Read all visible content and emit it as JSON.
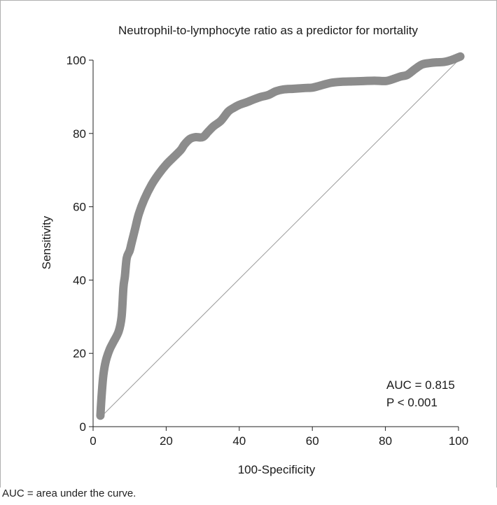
{
  "chart_data": {
    "type": "line",
    "title": "Neutrophil-to-lymphocyte ratio as a predictor for mortality",
    "xlabel": "100-Specificity",
    "ylabel": "Sensitivity",
    "xlim": [
      0,
      100
    ],
    "ylim": [
      0,
      100
    ],
    "xticks": [
      "0",
      "20",
      "40",
      "60",
      "80",
      "100"
    ],
    "yticks": [
      "0",
      "20",
      "40",
      "60",
      "80",
      "100"
    ],
    "grid": false,
    "series": [
      {
        "x": [
          2,
          2.3,
          2.8,
          3.5,
          4.5,
          5.5,
          7,
          7.8,
          8.3,
          8.7,
          9.2,
          10,
          10.5,
          11.5,
          12.5,
          14,
          16,
          18,
          20,
          22,
          24,
          25,
          26.5,
          28,
          30,
          31.5,
          33,
          35,
          37,
          38.5,
          40,
          42,
          44,
          46,
          48,
          50,
          52,
          55,
          58,
          60,
          62,
          65,
          68,
          71,
          74,
          77,
          80,
          82,
          84,
          86,
          88,
          90,
          92,
          94,
          96,
          98,
          100.5
        ],
        "y": [
          3,
          8,
          14,
          18,
          21,
          23,
          26,
          30,
          38,
          41,
          46,
          48,
          50,
          54,
          58,
          62,
          66,
          69,
          71.5,
          73.5,
          75.5,
          77,
          78.5,
          79,
          79,
          80.5,
          82,
          83.5,
          86,
          87,
          87.8,
          88.5,
          89.3,
          90,
          90.5,
          91.5,
          92,
          92.2,
          92.4,
          92.5,
          93,
          93.8,
          94.1,
          94.2,
          94.3,
          94.4,
          94.3,
          94.8,
          95.5,
          96,
          97.5,
          98.8,
          99.2,
          99.4,
          99.5,
          100,
          101
        ]
      }
    ],
    "reference_line": {
      "x": [
        2,
        100
      ],
      "y": [
        2.5,
        100
      ]
    },
    "annotations": [
      "AUC = 0.815",
      "P < 0.001"
    ]
  },
  "footnote": "AUC = area under the curve.",
  "colors": {
    "curve": "#8c8c8c",
    "reference": "#9a9a9a",
    "axis": "#222222"
  }
}
